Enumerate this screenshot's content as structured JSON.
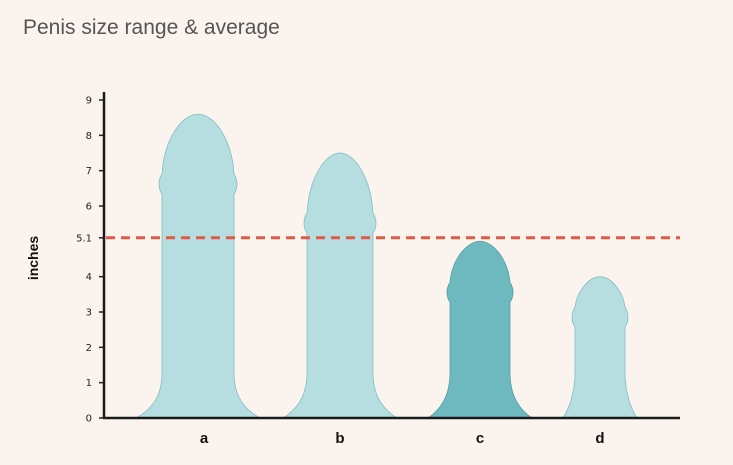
{
  "chart_data": {
    "type": "bar",
    "title": "Penis size range & average",
    "xlabel": "",
    "ylabel": "inches",
    "ylim": [
      0,
      9
    ],
    "yticks": [
      {
        "value": 0,
        "label": "0"
      },
      {
        "value": 1,
        "label": "1"
      },
      {
        "value": 2,
        "label": "2"
      },
      {
        "value": 3,
        "label": "3"
      },
      {
        "value": 4,
        "label": "4"
      },
      {
        "value": 5.1,
        "label": "5.1"
      },
      {
        "value": 6,
        "label": "6"
      },
      {
        "value": 7,
        "label": "7"
      },
      {
        "value": 8,
        "label": "8"
      },
      {
        "value": 9,
        "label": "9"
      }
    ],
    "categories": [
      "a",
      "b",
      "c",
      "d"
    ],
    "values": [
      8.6,
      7.5,
      5.0,
      4.0
    ],
    "reference_line": {
      "value": 5.1,
      "color": "#e05a45",
      "style": "dashed"
    },
    "bar_colors": [
      "#b6dde0",
      "#b6dde0",
      "#6db9bf",
      "#b6dde0"
    ],
    "grid": false
  }
}
